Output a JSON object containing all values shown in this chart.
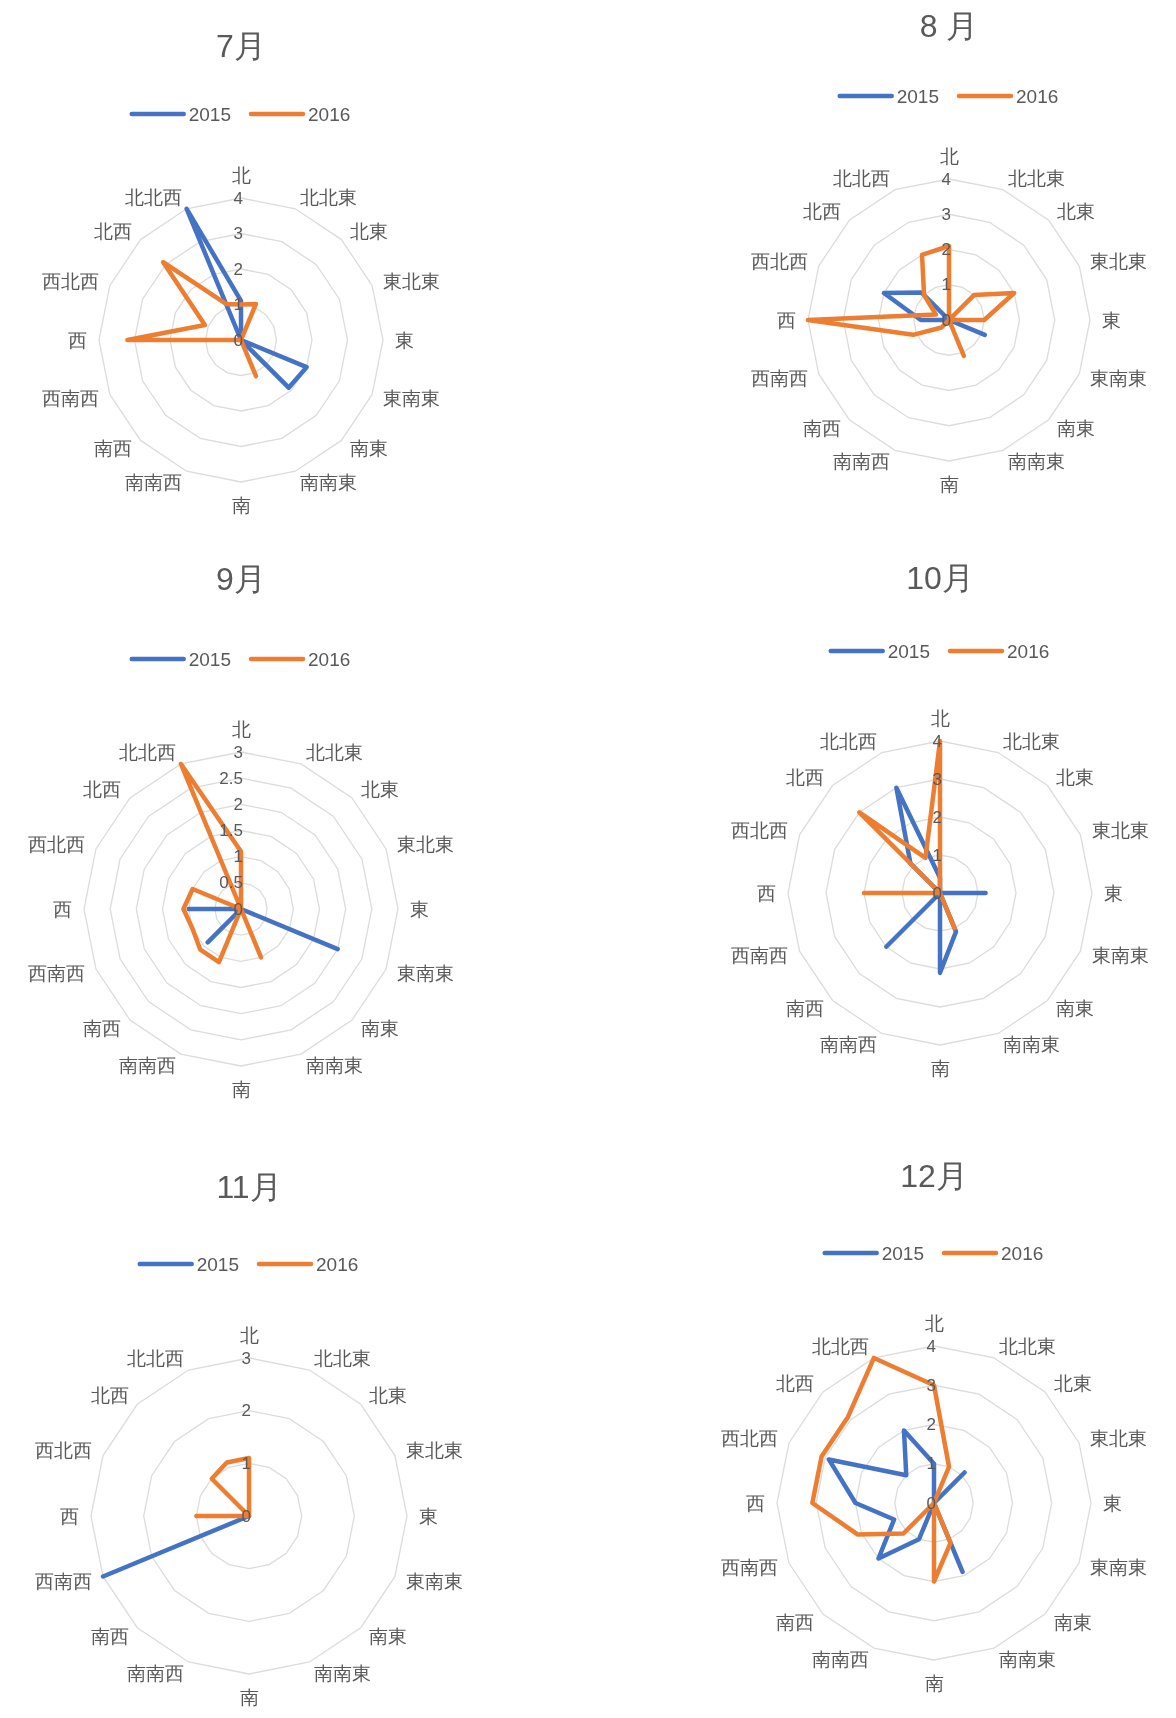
{
  "chart_data": [
    {
      "type": "radar",
      "title": "7月",
      "categories": [
        "北",
        "北北東",
        "北東",
        "東北東",
        "東",
        "東南東",
        "南東",
        "南南東",
        "南",
        "南南西",
        "南西",
        "西南西",
        "西",
        "西北西",
        "北西",
        "北北西"
      ],
      "series": [
        {
          "name": "2015",
          "color": "#4472c4",
          "values": [
            1.1,
            0,
            0,
            0,
            0,
            2.0,
            1.9,
            0,
            0,
            0,
            0,
            0,
            0,
            0,
            0,
            4.0
          ]
        },
        {
          "name": "2016",
          "color": "#ed7d31",
          "values": [
            1.0,
            1.1,
            0,
            0,
            0,
            0,
            0,
            1.1,
            0,
            0,
            0,
            0,
            3.2,
            1.1,
            3.1,
            1.1
          ]
        }
      ],
      "ylim": [
        0,
        4
      ],
      "yticks": [
        0,
        1,
        2,
        3,
        4
      ],
      "grid": true,
      "legend": "top"
    },
    {
      "type": "radar",
      "title": "8 月",
      "categories": [
        "北",
        "北北東",
        "北東",
        "東北東",
        "東",
        "東南東",
        "南東",
        "南南東",
        "南",
        "南南西",
        "南西",
        "西南西",
        "西",
        "西北西",
        "北西",
        "北北西"
      ],
      "series": [
        {
          "name": "2015",
          "color": "#4472c4",
          "values": [
            0,
            0,
            0,
            0,
            0,
            1.1,
            0,
            0,
            0,
            0,
            0,
            0,
            0.8,
            2.0,
            1.1,
            0
          ]
        },
        {
          "name": "2016",
          "color": "#ed7d31",
          "values": [
            2.1,
            0,
            1.0,
            2.0,
            1.0,
            0,
            0,
            1.1,
            0,
            0,
            0.3,
            1.1,
            4.0,
            0.4,
            1.0,
            2.0
          ]
        }
      ],
      "ylim": [
        0,
        4
      ],
      "yticks": [
        0,
        1,
        2,
        3,
        4
      ],
      "grid": true,
      "legend": "top"
    },
    {
      "type": "radar",
      "title": "9月",
      "categories": [
        "北",
        "北北東",
        "北東",
        "東北東",
        "東",
        "東南東",
        "南東",
        "南南東",
        "南",
        "南南西",
        "南西",
        "西南西",
        "西",
        "西北西",
        "北西",
        "北北西"
      ],
      "series": [
        {
          "name": "2015",
          "color": "#4472c4",
          "values": [
            0,
            0,
            0,
            0,
            0,
            2.0,
            0,
            0,
            0,
            0,
            0.9,
            0,
            1.0,
            0,
            0,
            0
          ]
        },
        {
          "name": "2016",
          "color": "#ed7d31",
          "values": [
            1.1,
            0,
            0,
            0,
            0,
            0,
            0,
            1.0,
            0,
            1.1,
            1.1,
            1.0,
            1.1,
            1.0,
            0,
            3.0
          ]
        }
      ],
      "ylim": [
        0,
        3
      ],
      "yticks": [
        0,
        0.5,
        1,
        1.5,
        2,
        2.5,
        3
      ],
      "grid": true,
      "legend": "top"
    },
    {
      "type": "radar",
      "title": "10月",
      "categories": [
        "北",
        "北北東",
        "北東",
        "東北東",
        "東",
        "東南東",
        "南東",
        "南南東",
        "南",
        "南南西",
        "南西",
        "西南西",
        "西",
        "西北西",
        "北西",
        "北北西"
      ],
      "series": [
        {
          "name": "2015",
          "color": "#4472c4",
          "values": [
            0.4,
            0,
            0,
            0,
            1.2,
            0,
            0,
            1.1,
            2.1,
            0,
            2.0,
            0,
            0,
            0,
            1.1,
            3.0
          ]
        },
        {
          "name": "2016",
          "color": "#ed7d31",
          "values": [
            4.0,
            0,
            0,
            0,
            0,
            0,
            0,
            1.0,
            0,
            0,
            0,
            0,
            2.0,
            0,
            3.0,
            1.0
          ]
        }
      ],
      "ylim": [
        0,
        4
      ],
      "yticks": [
        0,
        1,
        2,
        3,
        4
      ],
      "grid": true,
      "legend": "top"
    },
    {
      "type": "radar",
      "title": "11月",
      "categories": [
        "北",
        "北北東",
        "北東",
        "東北東",
        "東",
        "東南東",
        "南東",
        "南南東",
        "南",
        "南南西",
        "南西",
        "西南西",
        "西",
        "西北西",
        "北西",
        "北北西"
      ],
      "series": [
        {
          "name": "2015",
          "color": "#4472c4",
          "values": [
            0,
            0,
            0,
            0,
            0,
            0,
            0,
            0,
            0,
            0,
            0,
            3.0,
            0,
            0,
            0,
            0
          ]
        },
        {
          "name": "2016",
          "color": "#ed7d31",
          "values": [
            1.1,
            0,
            0,
            0,
            0,
            0,
            0,
            0,
            0,
            0,
            0,
            0,
            1.0,
            0,
            1.0,
            1.1
          ]
        }
      ],
      "ylim": [
        0,
        3
      ],
      "yticks": [
        0,
        1,
        2,
        3
      ],
      "grid": true,
      "legend": "top"
    },
    {
      "type": "radar",
      "title": "12月",
      "categories": [
        "北",
        "北北東",
        "北東",
        "東北東",
        "東",
        "東南東",
        "南東",
        "南南東",
        "南",
        "南南西",
        "南西",
        "西南西",
        "西",
        "西北西",
        "北西",
        "北北西"
      ],
      "series": [
        {
          "name": "2015",
          "color": "#4472c4",
          "values": [
            1.0,
            0,
            1.1,
            0,
            0,
            0,
            0,
            1.9,
            0,
            1.0,
            2.0,
            1.1,
            2.0,
            2.9,
            1.0,
            2.0
          ]
        },
        {
          "name": "2016",
          "color": "#ed7d31",
          "values": [
            3.0,
            1.0,
            0,
            0,
            0,
            0,
            0,
            1.1,
            2.0,
            0,
            1.1,
            2.1,
            3.1,
            3.1,
            3.1,
            4.0
          ]
        }
      ],
      "ylim": [
        0,
        4
      ],
      "yticks": [
        0,
        1,
        2,
        3,
        4
      ],
      "grid": true,
      "legend": "top"
    }
  ]
}
